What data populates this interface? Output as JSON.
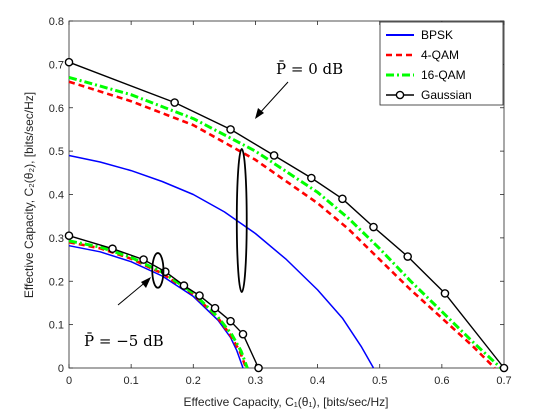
{
  "chart_data": {
    "type": "line",
    "xlabel": "Effective Capacity, C₁(θ₁),  [bits/sec/Hz]",
    "ylabel": "Effective Capacity, C₂(θ₂),  [bits/sec/Hz]",
    "xlim": [
      0,
      0.7
    ],
    "ylim": [
      0,
      0.8
    ],
    "xticks": [
      0,
      0.1,
      0.2,
      0.3,
      0.4,
      0.5,
      0.6,
      0.7
    ],
    "yticks": [
      0,
      0.1,
      0.2,
      0.3,
      0.4,
      0.5,
      0.6,
      0.7,
      0.8
    ],
    "xtick_labels": [
      "0",
      "0.1",
      "0.2",
      "0.3",
      "0.4",
      "0.5",
      "0.6",
      "0.7"
    ],
    "ytick_labels": [
      "0",
      "0.1",
      "0.2",
      "0.3",
      "0.4",
      "0.5",
      "0.6",
      "0.7",
      "0.8"
    ],
    "grid": false,
    "legend_position": "top-right",
    "series": [
      {
        "name": "BPSK",
        "color": "#0000ff",
        "style": "solid",
        "group": "0dB",
        "x": [
          0,
          0.05,
          0.1,
          0.15,
          0.2,
          0.25,
          0.3,
          0.35,
          0.4,
          0.44,
          0.47,
          0.49
        ],
        "y": [
          0.49,
          0.475,
          0.455,
          0.43,
          0.4,
          0.36,
          0.31,
          0.25,
          0.18,
          0.115,
          0.05,
          0.0
        ]
      },
      {
        "name": "4-QAM",
        "color": "#ff0000",
        "style": "dashed",
        "group": "0dB",
        "x": [
          0,
          0.1,
          0.2,
          0.3,
          0.4,
          0.45,
          0.5,
          0.55,
          0.6,
          0.65,
          0.685
        ],
        "y": [
          0.66,
          0.615,
          0.56,
          0.48,
          0.38,
          0.32,
          0.25,
          0.18,
          0.115,
          0.05,
          0.0
        ]
      },
      {
        "name": "16-QAM",
        "color": "#00ff00",
        "style": "dashdot",
        "group": "0dB",
        "x": [
          0,
          0.1,
          0.2,
          0.3,
          0.4,
          0.45,
          0.5,
          0.55,
          0.6,
          0.65,
          0.695
        ],
        "y": [
          0.67,
          0.63,
          0.575,
          0.5,
          0.405,
          0.345,
          0.275,
          0.2,
          0.13,
          0.06,
          0.0
        ]
      },
      {
        "name": "Gaussian",
        "color": "#000000",
        "style": "solid",
        "marker": "circle",
        "group": "0dB",
        "x": [
          0,
          0.17,
          0.26,
          0.33,
          0.39,
          0.44,
          0.49,
          0.545,
          0.605,
          0.7
        ],
        "y": [
          0.705,
          0.612,
          0.55,
          0.49,
          0.438,
          0.39,
          0.325,
          0.257,
          0.172,
          0.0
        ]
      },
      {
        "name": "BPSK",
        "color": "#0000ff",
        "style": "solid",
        "group": "-5dB",
        "x": [
          0,
          0.05,
          0.1,
          0.15,
          0.2,
          0.24,
          0.26,
          0.27,
          0.28
        ],
        "y": [
          0.282,
          0.268,
          0.245,
          0.212,
          0.165,
          0.11,
          0.07,
          0.04,
          0.0
        ]
      },
      {
        "name": "4-QAM",
        "color": "#ff0000",
        "style": "dashed",
        "group": "-5dB",
        "x": [
          0,
          0.05,
          0.1,
          0.15,
          0.2,
          0.24,
          0.26,
          0.275,
          0.285
        ],
        "y": [
          0.29,
          0.276,
          0.252,
          0.218,
          0.17,
          0.115,
          0.075,
          0.038,
          0.0
        ]
      },
      {
        "name": "16-QAM",
        "color": "#00ff00",
        "style": "dashdot",
        "group": "-5dB",
        "x": [
          0,
          0.05,
          0.1,
          0.15,
          0.2,
          0.24,
          0.262,
          0.277,
          0.287
        ],
        "y": [
          0.293,
          0.279,
          0.255,
          0.221,
          0.173,
          0.117,
          0.077,
          0.039,
          0.0
        ]
      },
      {
        "name": "Gaussian",
        "color": "#000000",
        "style": "solid",
        "marker": "circle",
        "group": "-5dB",
        "x": [
          0,
          0.07,
          0.12,
          0.155,
          0.185,
          0.21,
          0.235,
          0.26,
          0.28,
          0.305
        ],
        "y": [
          0.305,
          0.275,
          0.25,
          0.222,
          0.19,
          0.167,
          0.138,
          0.108,
          0.078,
          0.0
        ]
      }
    ],
    "legend": [
      "BPSK",
      "4-QAM",
      "16-QAM",
      "Gaussian"
    ],
    "annotations": [
      {
        "text": "P̄ = 0 dB",
        "ellipse_center": [
          0.278,
          0.34
        ],
        "ellipse_radius": [
          0.008,
          0.165
        ]
      },
      {
        "text": "P̄ = −5 dB",
        "ellipse_center": [
          0.143,
          0.225
        ],
        "ellipse_radius": [
          0.009,
          0.04
        ]
      }
    ]
  }
}
